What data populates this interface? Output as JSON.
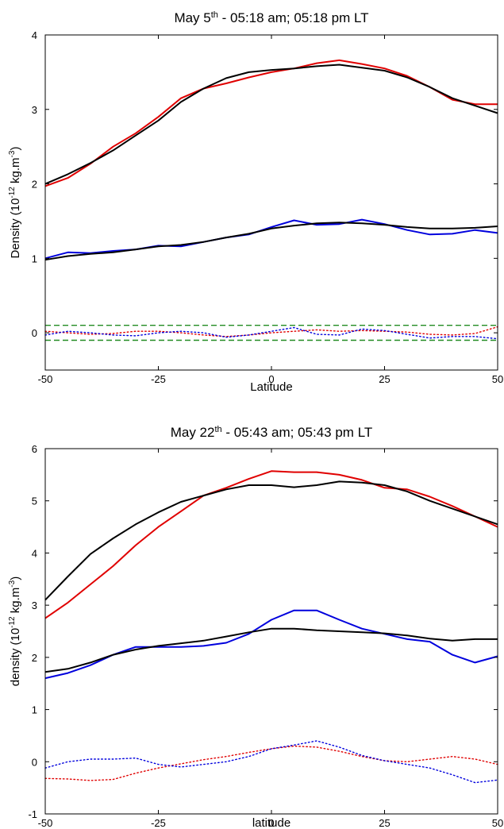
{
  "chart_data": [
    {
      "type": "line",
      "title": "May 5th - 05:18 am; 05:18 pm LT",
      "title_parts": {
        "pre": "May 5",
        "sup": "th",
        "post": " - 05:18 am; 05:18 pm LT"
      },
      "xlabel": "Latitude",
      "ylabel_parts": {
        "pre": "Density (10",
        "sup1": "-12",
        "mid": " kg.m",
        "sup2": "-3",
        "post": ")"
      },
      "xlim": [
        -50,
        50
      ],
      "ylim": [
        -0.5,
        4
      ],
      "xticks": [
        -50,
        -25,
        0,
        25,
        50
      ],
      "yticks": [
        0,
        1,
        2,
        3,
        4
      ],
      "grid": false,
      "series": [
        {
          "color": "#e00000",
          "style": "solid",
          "x": [
            -50,
            -45,
            -40,
            -35,
            -30,
            -25,
            -20,
            -15,
            -10,
            -5,
            0,
            5,
            10,
            15,
            20,
            25,
            30,
            35,
            40,
            45,
            50
          ],
          "y": [
            1.97,
            2.08,
            2.27,
            2.5,
            2.68,
            2.9,
            3.15,
            3.28,
            3.35,
            3.43,
            3.5,
            3.55,
            3.62,
            3.66,
            3.61,
            3.55,
            3.45,
            3.3,
            3.13,
            3.07,
            3.07
          ]
        },
        {
          "color": "#000000",
          "style": "solid",
          "x": [
            -50,
            -45,
            -40,
            -35,
            -30,
            -25,
            -20,
            -15,
            -10,
            -5,
            0,
            5,
            10,
            15,
            20,
            25,
            30,
            35,
            40,
            45,
            50
          ],
          "y": [
            2.0,
            2.13,
            2.28,
            2.45,
            2.65,
            2.85,
            3.1,
            3.28,
            3.42,
            3.5,
            3.53,
            3.55,
            3.58,
            3.6,
            3.56,
            3.52,
            3.43,
            3.3,
            3.15,
            3.05,
            2.95
          ]
        },
        {
          "color": "#0000dd",
          "style": "solid",
          "x": [
            -50,
            -45,
            -40,
            -35,
            -30,
            -25,
            -20,
            -15,
            -10,
            -5,
            0,
            5,
            10,
            15,
            20,
            25,
            30,
            35,
            40,
            45,
            50
          ],
          "y": [
            1.0,
            1.08,
            1.07,
            1.1,
            1.12,
            1.17,
            1.16,
            1.22,
            1.28,
            1.32,
            1.42,
            1.51,
            1.45,
            1.46,
            1.52,
            1.46,
            1.38,
            1.32,
            1.33,
            1.38,
            1.34
          ]
        },
        {
          "color": "#000000",
          "style": "solid",
          "x": [
            -50,
            -45,
            -40,
            -35,
            -30,
            -25,
            -20,
            -15,
            -10,
            -5,
            0,
            5,
            10,
            15,
            20,
            25,
            30,
            35,
            40,
            45,
            50
          ],
          "y": [
            0.98,
            1.03,
            1.06,
            1.08,
            1.12,
            1.16,
            1.18,
            1.22,
            1.28,
            1.33,
            1.4,
            1.44,
            1.47,
            1.48,
            1.47,
            1.45,
            1.42,
            1.4,
            1.4,
            1.41,
            1.43
          ]
        },
        {
          "color": "#e00000",
          "style": "dotted",
          "x": [
            -50,
            -45,
            -40,
            -35,
            -30,
            -25,
            -20,
            -15,
            -10,
            -5,
            0,
            5,
            10,
            15,
            20,
            25,
            30,
            35,
            40,
            45,
            50
          ],
          "y": [
            0.02,
            0.0,
            -0.02,
            -0.01,
            0.02,
            0.02,
            0.0,
            -0.03,
            -0.05,
            -0.03,
            0.0,
            0.02,
            0.04,
            0.02,
            0.03,
            0.02,
            0.01,
            -0.02,
            -0.03,
            -0.01,
            0.08
          ]
        },
        {
          "color": "#0000dd",
          "style": "dotted",
          "x": [
            -50,
            -45,
            -40,
            -35,
            -30,
            -25,
            -20,
            -15,
            -10,
            -5,
            0,
            5,
            10,
            15,
            20,
            25,
            30,
            35,
            40,
            45,
            50
          ],
          "y": [
            -0.03,
            0.02,
            0.0,
            -0.03,
            -0.04,
            0.0,
            0.02,
            0.0,
            -0.06,
            -0.03,
            0.02,
            0.07,
            -0.02,
            -0.03,
            0.05,
            0.03,
            -0.02,
            -0.07,
            -0.05,
            -0.05,
            -0.08
          ]
        },
        {
          "color": "#228b22",
          "style": "dashed",
          "x": [
            -50,
            50
          ],
          "y": [
            0.1,
            0.1
          ]
        },
        {
          "color": "#228b22",
          "style": "dashed",
          "x": [
            -50,
            50
          ],
          "y": [
            -0.1,
            -0.1
          ]
        }
      ]
    },
    {
      "type": "line",
      "title": "May 22th - 05:43 am; 05:43 pm LT",
      "title_parts": {
        "pre": "May 22",
        "sup": "th",
        "post": " - 05:43 am; 05:43 pm LT"
      },
      "xlabel": "latitude",
      "ylabel_parts": {
        "pre": "density (10",
        "sup1": "-12",
        "mid": " kg.m",
        "sup2": "-3",
        "post": ")"
      },
      "xlim": [
        -50,
        50
      ],
      "ylim": [
        -1,
        6
      ],
      "xticks": [
        -50,
        -25,
        0,
        25,
        50
      ],
      "yticks": [
        -1,
        0,
        1,
        2,
        3,
        4,
        5,
        6
      ],
      "grid": false,
      "series": [
        {
          "color": "#e00000",
          "style": "solid",
          "x": [
            -50,
            -45,
            -40,
            -35,
            -30,
            -25,
            -20,
            -15,
            -10,
            -5,
            0,
            5,
            10,
            15,
            20,
            25,
            30,
            35,
            40,
            45,
            50
          ],
          "y": [
            2.75,
            3.05,
            3.4,
            3.75,
            4.15,
            4.5,
            4.8,
            5.1,
            5.25,
            5.42,
            5.57,
            5.55,
            5.55,
            5.5,
            5.4,
            5.25,
            5.22,
            5.08,
            4.9,
            4.7,
            4.5
          ]
        },
        {
          "color": "#000000",
          "style": "solid",
          "x": [
            -50,
            -45,
            -40,
            -35,
            -30,
            -25,
            -20,
            -15,
            -10,
            -5,
            0,
            5,
            10,
            15,
            20,
            25,
            30,
            35,
            40,
            45,
            50
          ],
          "y": [
            3.1,
            3.55,
            3.98,
            4.28,
            4.55,
            4.78,
            4.98,
            5.1,
            5.22,
            5.3,
            5.3,
            5.26,
            5.3,
            5.37,
            5.35,
            5.3,
            5.18,
            5.0,
            4.85,
            4.7,
            4.55
          ]
        },
        {
          "color": "#0000dd",
          "style": "solid",
          "x": [
            -50,
            -45,
            -40,
            -35,
            -30,
            -25,
            -20,
            -15,
            -10,
            -5,
            0,
            5,
            10,
            15,
            20,
            25,
            30,
            35,
            40,
            45,
            50
          ],
          "y": [
            1.6,
            1.7,
            1.85,
            2.05,
            2.2,
            2.2,
            2.2,
            2.22,
            2.28,
            2.45,
            2.72,
            2.9,
            2.9,
            2.72,
            2.55,
            2.45,
            2.35,
            2.3,
            2.05,
            1.9,
            2.02
          ]
        },
        {
          "color": "#000000",
          "style": "solid",
          "x": [
            -50,
            -45,
            -40,
            -35,
            -30,
            -25,
            -20,
            -15,
            -10,
            -5,
            0,
            5,
            10,
            15,
            20,
            25,
            30,
            35,
            40,
            45,
            50
          ],
          "y": [
            1.72,
            1.78,
            1.9,
            2.05,
            2.15,
            2.22,
            2.27,
            2.32,
            2.4,
            2.48,
            2.55,
            2.55,
            2.52,
            2.5,
            2.48,
            2.46,
            2.42,
            2.36,
            2.32,
            2.35,
            2.35
          ]
        },
        {
          "color": "#e00000",
          "style": "dotted",
          "x": [
            -50,
            -45,
            -40,
            -35,
            -30,
            -25,
            -20,
            -15,
            -10,
            -5,
            0,
            5,
            10,
            15,
            20,
            25,
            30,
            35,
            40,
            45,
            50
          ],
          "y": [
            -0.32,
            -0.33,
            -0.36,
            -0.34,
            -0.22,
            -0.12,
            -0.04,
            0.04,
            0.1,
            0.18,
            0.25,
            0.3,
            0.28,
            0.2,
            0.1,
            0.02,
            0.0,
            0.05,
            0.1,
            0.05,
            -0.05
          ]
        },
        {
          "color": "#0000dd",
          "style": "dotted",
          "x": [
            -50,
            -45,
            -40,
            -35,
            -30,
            -25,
            -20,
            -15,
            -10,
            -5,
            0,
            5,
            10,
            15,
            20,
            25,
            30,
            35,
            40,
            45,
            50
          ],
          "y": [
            -0.12,
            0.0,
            0.05,
            0.05,
            0.07,
            -0.05,
            -0.1,
            -0.05,
            0.0,
            0.1,
            0.25,
            0.32,
            0.4,
            0.28,
            0.12,
            0.02,
            -0.05,
            -0.12,
            -0.25,
            -0.4,
            -0.35
          ]
        }
      ]
    }
  ]
}
